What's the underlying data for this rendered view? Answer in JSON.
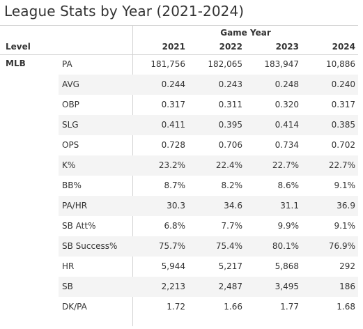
{
  "title": "League Stats by Year (2021-2024)",
  "column_group_label": "Game Year",
  "row_header_label": "Level",
  "level": "MLB",
  "years": [
    "2021",
    "2022",
    "2023",
    "2024"
  ],
  "rows": [
    {
      "metric": "PA",
      "values": [
        "181,756",
        "182,065",
        "183,947",
        "10,886"
      ]
    },
    {
      "metric": "AVG",
      "values": [
        "0.244",
        "0.243",
        "0.248",
        "0.240"
      ]
    },
    {
      "metric": "OBP",
      "values": [
        "0.317",
        "0.311",
        "0.320",
        "0.317"
      ]
    },
    {
      "metric": "SLG",
      "values": [
        "0.411",
        "0.395",
        "0.414",
        "0.385"
      ]
    },
    {
      "metric": "OPS",
      "values": [
        "0.728",
        "0.706",
        "0.734",
        "0.702"
      ]
    },
    {
      "metric": "K%",
      "values": [
        "23.2%",
        "22.4%",
        "22.7%",
        "22.7%"
      ]
    },
    {
      "metric": "BB%",
      "values": [
        "8.7%",
        "8.2%",
        "8.6%",
        "9.1%"
      ]
    },
    {
      "metric": "PA/HR",
      "values": [
        "30.3",
        "34.6",
        "31.1",
        "36.9"
      ]
    },
    {
      "metric": "SB Att%",
      "values": [
        "6.8%",
        "7.7%",
        "9.9%",
        "9.1%"
      ]
    },
    {
      "metric": "SB Success%",
      "values": [
        "75.7%",
        "75.4%",
        "80.1%",
        "76.9%"
      ]
    },
    {
      "metric": "HR",
      "values": [
        "5,944",
        "5,217",
        "5,868",
        "292"
      ]
    },
    {
      "metric": "SB",
      "values": [
        "2,213",
        "2,487",
        "3,495",
        "186"
      ]
    },
    {
      "metric": "DK/PA",
      "values": [
        "1.72",
        "1.66",
        "1.77",
        "1.68"
      ]
    }
  ]
}
